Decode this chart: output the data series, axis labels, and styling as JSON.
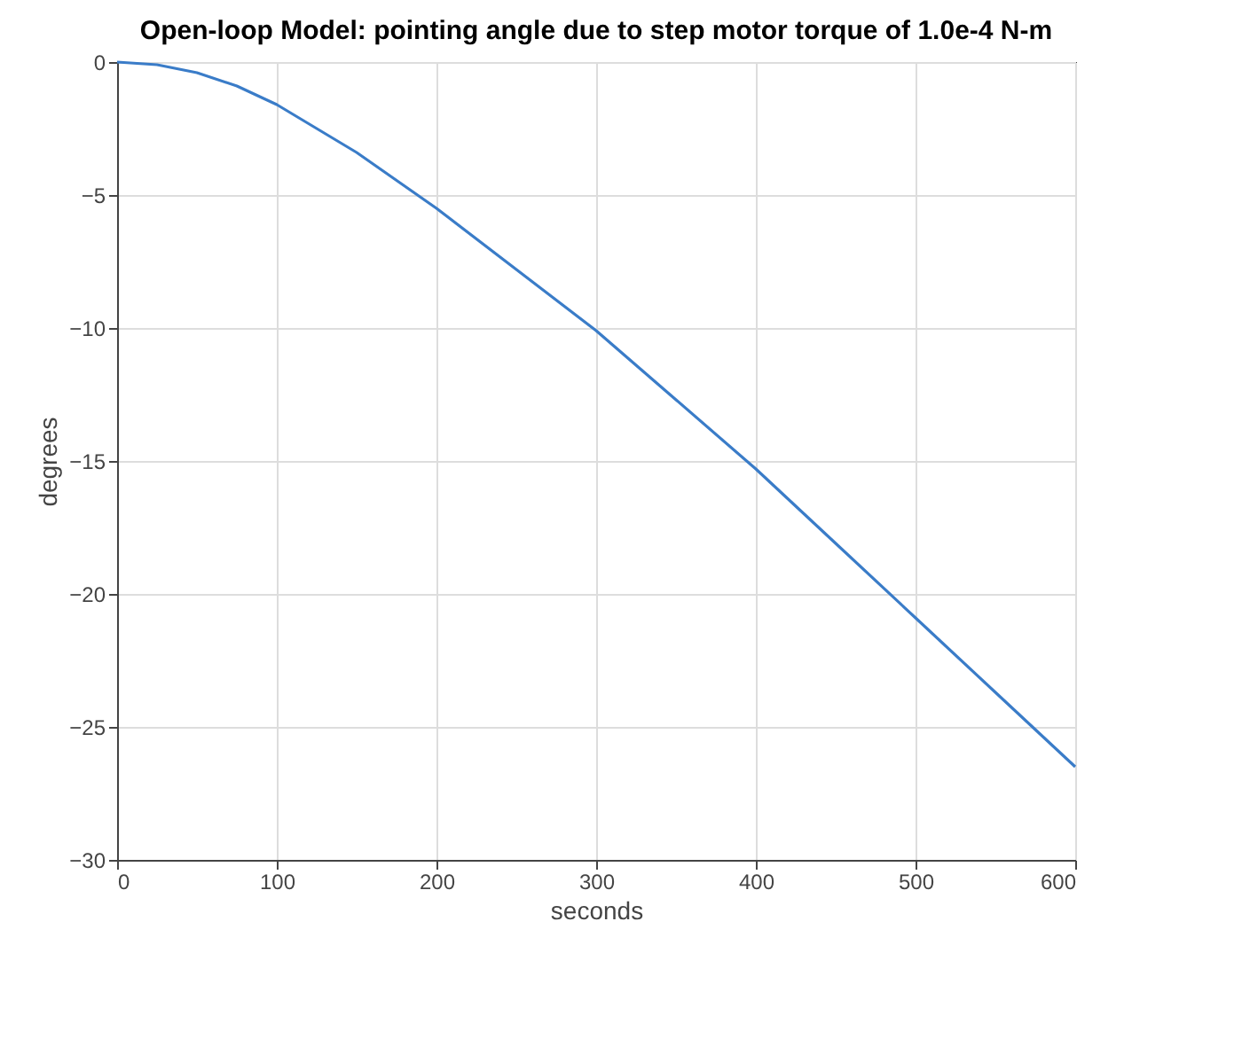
{
  "chart_data": {
    "type": "line",
    "title": "Open-loop Model: pointing angle due to step motor torque of 1.0e-4 N-m",
    "xlabel": "seconds",
    "ylabel": "degrees",
    "series": [
      {
        "color": "#3a7cc8",
        "x": [
          0,
          25,
          50,
          75,
          100,
          150,
          200,
          250,
          300,
          350,
          400,
          450,
          500,
          550,
          600
        ],
        "values": [
          0,
          -0.1,
          -0.4,
          -0.9,
          -1.6,
          -3.4,
          -5.5,
          -7.8,
          -10.1,
          -12.7,
          -15.3,
          -18.1,
          -20.9,
          -23.7,
          -26.5
        ]
      }
    ],
    "xlim": [
      0,
      600
    ],
    "xticks": [
      0,
      100,
      200,
      300,
      400,
      500,
      600
    ],
    "ylim": [
      -30,
      0
    ],
    "yticks": [
      -30,
      -25,
      -20,
      -15,
      -10,
      -5,
      0
    ],
    "grid": true
  }
}
